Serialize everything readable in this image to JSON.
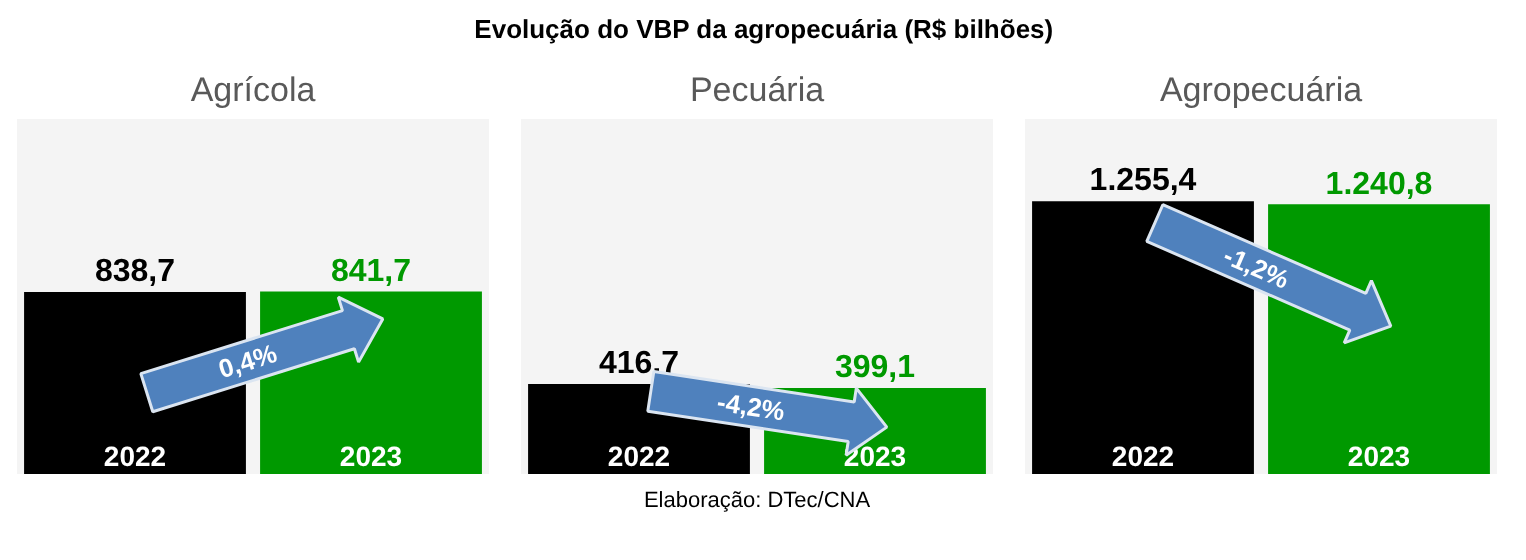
{
  "chart_data": [
    {
      "type": "bar",
      "title": "Evolução do VBP da agropecuária (R$ bilhões)",
      "subtitle": "Agrícola",
      "categories": [
        "2022",
        "2023"
      ],
      "values": [
        838.7,
        841.7
      ],
      "colors": [
        "#000000",
        "#009900"
      ],
      "value_labels": [
        "838,7",
        "841,7"
      ],
      "annotations": [
        "0,4%"
      ]
    },
    {
      "type": "bar",
      "subtitle": "Pecuária",
      "categories": [
        "2022",
        "2023"
      ],
      "values": [
        416.7,
        399.1
      ],
      "colors": [
        "#000000",
        "#009900"
      ],
      "value_labels": [
        "416,7",
        "399,1"
      ],
      "annotations": [
        "-4,2%",
        "Elaboração: DTec/CNA"
      ]
    },
    {
      "type": "bar",
      "subtitle": "Agropecuária",
      "categories": [
        "2022",
        "2023"
      ],
      "values": [
        1255.4,
        1240.8
      ],
      "colors": [
        "#000000",
        "#009900"
      ],
      "value_labels": [
        "1.255,4",
        "1.240,8"
      ],
      "annotations": [
        "-1,2%"
      ]
    }
  ]
}
